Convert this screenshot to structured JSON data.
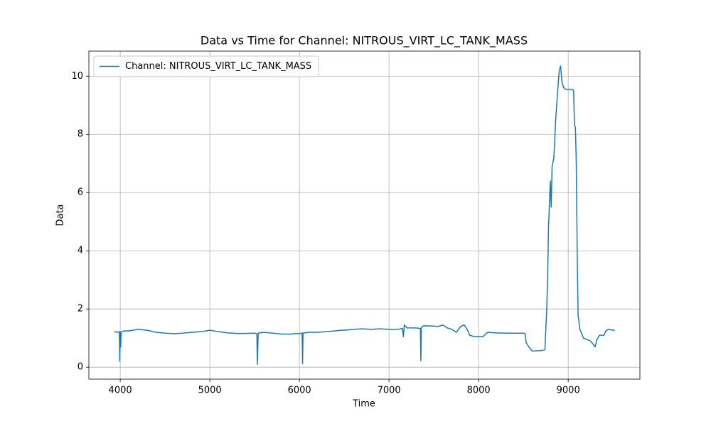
{
  "chart_data": {
    "type": "line",
    "title": "Data vs Time for Channel: NITROUS_VIRT_LC_TANK_MASS",
    "x_label": "Time",
    "y_label": "Data",
    "x": [
      3930,
      3970,
      3990,
      3995,
      4000,
      4005,
      4010,
      4050,
      4100,
      4200,
      4300,
      4400,
      4500,
      4600,
      4700,
      4800,
      4900,
      5000,
      5100,
      5200,
      5300,
      5400,
      5500,
      5525,
      5530,
      5540,
      5600,
      5700,
      5800,
      5900,
      6000,
      6030,
      6035,
      6040,
      6100,
      6200,
      6300,
      6400,
      6470,
      6500,
      6600,
      6700,
      6800,
      6900,
      7000,
      7100,
      7150,
      7160,
      7170,
      7200,
      7300,
      7350,
      7355,
      7360,
      7380,
      7450,
      7550,
      7600,
      7650,
      7700,
      7750,
      7800,
      7840,
      7880,
      7900,
      7950,
      8050,
      8100,
      8200,
      8300,
      8400,
      8500,
      8520,
      8530,
      8560,
      8600,
      8650,
      8700,
      8740,
      8760,
      8770,
      8780,
      8800,
      8810,
      8820,
      8840,
      8860,
      8880,
      8900,
      8915,
      8930,
      8950,
      8970,
      9000,
      9040,
      9060,
      9070,
      9080,
      9090,
      9100,
      9110,
      9130,
      9170,
      9250,
      9300,
      9320,
      9350,
      9400,
      9420,
      9450,
      9480,
      9520
    ],
    "series": [
      {
        "name": "Channel: NITROUS_VIRT_LC_TANK_MASS",
        "color": "#1f77b4",
        "values": [
          1.22,
          1.2,
          1.22,
          0.2,
          1.2,
          0.7,
          1.22,
          1.25,
          1.25,
          1.3,
          1.27,
          1.2,
          1.17,
          1.15,
          1.17,
          1.2,
          1.22,
          1.27,
          1.22,
          1.18,
          1.16,
          1.16,
          1.17,
          1.15,
          0.1,
          1.17,
          1.2,
          1.17,
          1.14,
          1.14,
          1.16,
          1.17,
          0.12,
          1.17,
          1.2,
          1.2,
          1.22,
          1.25,
          1.27,
          1.27,
          1.3,
          1.32,
          1.3,
          1.32,
          1.3,
          1.3,
          1.33,
          1.05,
          1.45,
          1.35,
          1.35,
          1.33,
          0.22,
          1.35,
          1.42,
          1.42,
          1.4,
          1.45,
          1.35,
          1.3,
          1.2,
          1.4,
          1.45,
          1.25,
          1.1,
          1.05,
          1.05,
          1.2,
          1.18,
          1.17,
          1.17,
          1.17,
          1.15,
          0.85,
          0.7,
          0.55,
          0.57,
          0.57,
          0.6,
          2.0,
          3.0,
          4.8,
          6.4,
          5.5,
          6.9,
          7.2,
          8.5,
          9.4,
          10.2,
          10.35,
          9.8,
          9.6,
          9.55,
          9.55,
          9.55,
          9.5,
          8.3,
          8.25,
          7.0,
          4.0,
          1.8,
          1.3,
          1.0,
          0.9,
          0.7,
          0.95,
          1.1,
          1.1,
          1.25,
          1.3,
          1.28,
          1.27
        ]
      }
    ],
    "xlim": [
      3650,
      9800
    ],
    "ylim": [
      -0.41,
      10.86
    ],
    "xticks": [
      4000,
      5000,
      6000,
      7000,
      8000,
      9000
    ],
    "yticks": [
      0,
      2,
      4,
      6,
      8,
      10
    ],
    "grid": true,
    "legend": "upper left"
  }
}
